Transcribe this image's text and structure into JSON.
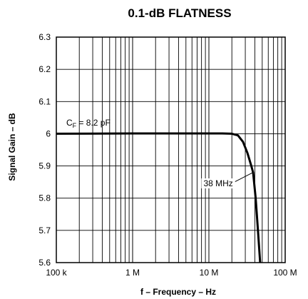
{
  "chart_data": {
    "type": "line",
    "title": "0.1-dB FLATNESS",
    "xlabel": "f – Frequency – Hz",
    "ylabel": "Signal Gain – dB",
    "x_scale": "log",
    "xlim": [
      100000,
      100000000
    ],
    "ylim": [
      5.6,
      6.3
    ],
    "x_ticks": [
      {
        "value": 100000,
        "label": "100 k"
      },
      {
        "value": 1000000,
        "label": "1 M"
      },
      {
        "value": 10000000,
        "label": "10 M"
      },
      {
        "value": 100000000,
        "label": "100 M"
      }
    ],
    "y_ticks": [
      {
        "value": 5.6,
        "label": "5.6"
      },
      {
        "value": 5.7,
        "label": "5.7"
      },
      {
        "value": 5.8,
        "label": "5.8"
      },
      {
        "value": 5.9,
        "label": "5.9"
      },
      {
        "value": 6.0,
        "label": "6"
      },
      {
        "value": 6.1,
        "label": "6.1"
      },
      {
        "value": 6.2,
        "label": "6.2"
      },
      {
        "value": 6.3,
        "label": "6.3"
      }
    ],
    "grid": true,
    "series": [
      {
        "x": [
          100000,
          1000000,
          5000000,
          15000000,
          20000000,
          24000000,
          28000000,
          32000000,
          36000000,
          38000000,
          41000000,
          44000000,
          47000000
        ],
        "y": [
          6.0,
          6.001,
          6.001,
          6.001,
          6.0,
          5.995,
          5.975,
          5.94,
          5.9,
          5.88,
          5.8,
          5.7,
          5.6
        ]
      }
    ],
    "annotations": {
      "cf": {
        "prefix": "C",
        "subscript": "F",
        "suffix": " = 8.2 pF",
        "x": 135000,
        "y": 6.003
      },
      "marker": {
        "label": "38 MHz",
        "text_x": 8500000,
        "text_y": 5.837,
        "point_x": 38000000,
        "point_y": 5.88
      }
    }
  }
}
